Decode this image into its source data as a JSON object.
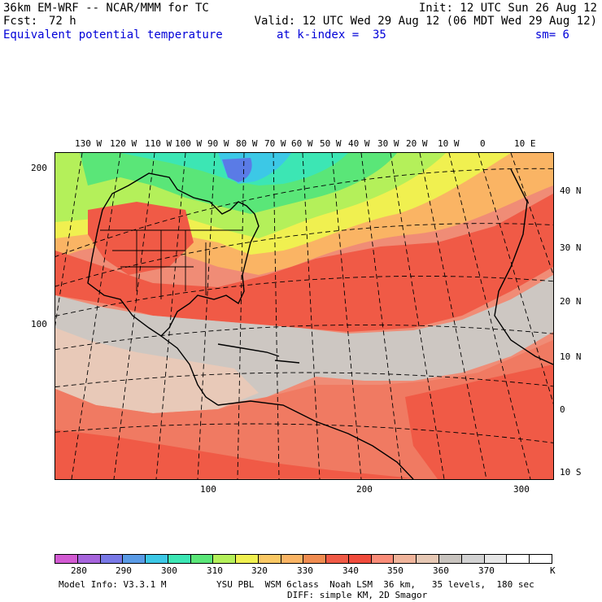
{
  "header": {
    "model_title": "36km EM-WRF -- NCAR/MMM for TC",
    "init": "Init: 12 UTC Sun 26 Aug 12",
    "fcst_label": "Fcst:",
    "fcst_value": "72 h",
    "valid": "Valid: 12 UTC Wed 29 Aug 12 (06 MDT Wed 29 Aug 12)",
    "field": "Equivalent potential temperature",
    "level": "at k-index =  35",
    "smoothing": "sm= 6"
  },
  "grid_axes": {
    "left": [
      "200",
      "100"
    ],
    "bottom": [
      "100",
      "200",
      "300"
    ]
  },
  "longitude_labels": [
    "130 W",
    "120 W",
    "110 W",
    "100 W",
    "90 W",
    "80 W",
    "70 W",
    "60 W",
    "50 W",
    "40 W",
    "30 W",
    "20 W",
    "10 W",
    "0",
    "10 E"
  ],
  "latitude_labels": [
    "40 N",
    "30 N",
    "20 N",
    "10 N",
    "0",
    "10 S"
  ],
  "colorbar": {
    "colors": [
      "#d25ad2",
      "#a664dc",
      "#7878e6",
      "#5a9be6",
      "#3cc8e6",
      "#3ce6b4",
      "#5ae678",
      "#b4f05a",
      "#f0f050",
      "#fac864",
      "#fab464",
      "#f08c50",
      "#f05a46",
      "#f04b3c",
      "#fa8c78",
      "#f0b49b",
      "#e6c8b4",
      "#c8c3be",
      "#d2d2d2",
      "#e6e6e6",
      "#ffffff",
      "#ffffff"
    ],
    "labels": [
      "280",
      "290",
      "300",
      "310",
      "320",
      "330",
      "340",
      "350",
      "360",
      "370"
    ],
    "unit": "K"
  },
  "footer": {
    "model_info": "Model Info: V3.3.1 M",
    "physics": "YSU PBL  WSM 6class  Noah LSM  36 km,   35 levels,  180 sec",
    "diffusion": "DIFF: simple KM, 2D Smagor"
  }
}
